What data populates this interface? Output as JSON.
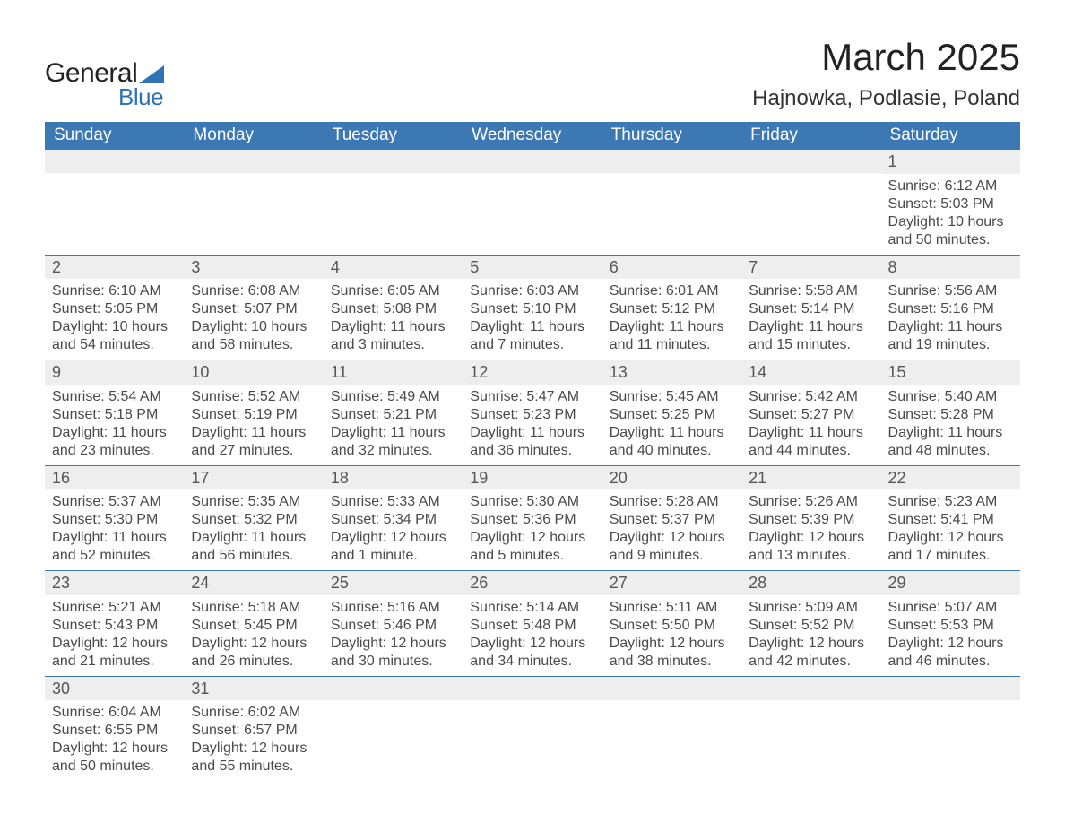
{
  "logo": {
    "text_general": "General",
    "text_blue": "Blue"
  },
  "header": {
    "month_title": "March 2025",
    "location": "Hajnowka, Podlasie, Poland"
  },
  "colors": {
    "header_bg": "#3c78b4",
    "header_text": "#ffffff",
    "daynum_bg": "#eeeeee",
    "row_border": "#3c78b4",
    "body_text": "#4a4a4a",
    "logo_blue": "#2f72b5",
    "background": "#ffffff"
  },
  "weekdays": [
    "Sunday",
    "Monday",
    "Tuesday",
    "Wednesday",
    "Thursday",
    "Friday",
    "Saturday"
  ],
  "weeks": [
    [
      null,
      null,
      null,
      null,
      null,
      null,
      {
        "day": "1",
        "sunrise": "Sunrise: 6:12 AM",
        "sunset": "Sunset: 5:03 PM",
        "daylight1": "Daylight: 10 hours",
        "daylight2": "and 50 minutes."
      }
    ],
    [
      {
        "day": "2",
        "sunrise": "Sunrise: 6:10 AM",
        "sunset": "Sunset: 5:05 PM",
        "daylight1": "Daylight: 10 hours",
        "daylight2": "and 54 minutes."
      },
      {
        "day": "3",
        "sunrise": "Sunrise: 6:08 AM",
        "sunset": "Sunset: 5:07 PM",
        "daylight1": "Daylight: 10 hours",
        "daylight2": "and 58 minutes."
      },
      {
        "day": "4",
        "sunrise": "Sunrise: 6:05 AM",
        "sunset": "Sunset: 5:08 PM",
        "daylight1": "Daylight: 11 hours",
        "daylight2": "and 3 minutes."
      },
      {
        "day": "5",
        "sunrise": "Sunrise: 6:03 AM",
        "sunset": "Sunset: 5:10 PM",
        "daylight1": "Daylight: 11 hours",
        "daylight2": "and 7 minutes."
      },
      {
        "day": "6",
        "sunrise": "Sunrise: 6:01 AM",
        "sunset": "Sunset: 5:12 PM",
        "daylight1": "Daylight: 11 hours",
        "daylight2": "and 11 minutes."
      },
      {
        "day": "7",
        "sunrise": "Sunrise: 5:58 AM",
        "sunset": "Sunset: 5:14 PM",
        "daylight1": "Daylight: 11 hours",
        "daylight2": "and 15 minutes."
      },
      {
        "day": "8",
        "sunrise": "Sunrise: 5:56 AM",
        "sunset": "Sunset: 5:16 PM",
        "daylight1": "Daylight: 11 hours",
        "daylight2": "and 19 minutes."
      }
    ],
    [
      {
        "day": "9",
        "sunrise": "Sunrise: 5:54 AM",
        "sunset": "Sunset: 5:18 PM",
        "daylight1": "Daylight: 11 hours",
        "daylight2": "and 23 minutes."
      },
      {
        "day": "10",
        "sunrise": "Sunrise: 5:52 AM",
        "sunset": "Sunset: 5:19 PM",
        "daylight1": "Daylight: 11 hours",
        "daylight2": "and 27 minutes."
      },
      {
        "day": "11",
        "sunrise": "Sunrise: 5:49 AM",
        "sunset": "Sunset: 5:21 PM",
        "daylight1": "Daylight: 11 hours",
        "daylight2": "and 32 minutes."
      },
      {
        "day": "12",
        "sunrise": "Sunrise: 5:47 AM",
        "sunset": "Sunset: 5:23 PM",
        "daylight1": "Daylight: 11 hours",
        "daylight2": "and 36 minutes."
      },
      {
        "day": "13",
        "sunrise": "Sunrise: 5:45 AM",
        "sunset": "Sunset: 5:25 PM",
        "daylight1": "Daylight: 11 hours",
        "daylight2": "and 40 minutes."
      },
      {
        "day": "14",
        "sunrise": "Sunrise: 5:42 AM",
        "sunset": "Sunset: 5:27 PM",
        "daylight1": "Daylight: 11 hours",
        "daylight2": "and 44 minutes."
      },
      {
        "day": "15",
        "sunrise": "Sunrise: 5:40 AM",
        "sunset": "Sunset: 5:28 PM",
        "daylight1": "Daylight: 11 hours",
        "daylight2": "and 48 minutes."
      }
    ],
    [
      {
        "day": "16",
        "sunrise": "Sunrise: 5:37 AM",
        "sunset": "Sunset: 5:30 PM",
        "daylight1": "Daylight: 11 hours",
        "daylight2": "and 52 minutes."
      },
      {
        "day": "17",
        "sunrise": "Sunrise: 5:35 AM",
        "sunset": "Sunset: 5:32 PM",
        "daylight1": "Daylight: 11 hours",
        "daylight2": "and 56 minutes."
      },
      {
        "day": "18",
        "sunrise": "Sunrise: 5:33 AM",
        "sunset": "Sunset: 5:34 PM",
        "daylight1": "Daylight: 12 hours",
        "daylight2": "and 1 minute."
      },
      {
        "day": "19",
        "sunrise": "Sunrise: 5:30 AM",
        "sunset": "Sunset: 5:36 PM",
        "daylight1": "Daylight: 12 hours",
        "daylight2": "and 5 minutes."
      },
      {
        "day": "20",
        "sunrise": "Sunrise: 5:28 AM",
        "sunset": "Sunset: 5:37 PM",
        "daylight1": "Daylight: 12 hours",
        "daylight2": "and 9 minutes."
      },
      {
        "day": "21",
        "sunrise": "Sunrise: 5:26 AM",
        "sunset": "Sunset: 5:39 PM",
        "daylight1": "Daylight: 12 hours",
        "daylight2": "and 13 minutes."
      },
      {
        "day": "22",
        "sunrise": "Sunrise: 5:23 AM",
        "sunset": "Sunset: 5:41 PM",
        "daylight1": "Daylight: 12 hours",
        "daylight2": "and 17 minutes."
      }
    ],
    [
      {
        "day": "23",
        "sunrise": "Sunrise: 5:21 AM",
        "sunset": "Sunset: 5:43 PM",
        "daylight1": "Daylight: 12 hours",
        "daylight2": "and 21 minutes."
      },
      {
        "day": "24",
        "sunrise": "Sunrise: 5:18 AM",
        "sunset": "Sunset: 5:45 PM",
        "daylight1": "Daylight: 12 hours",
        "daylight2": "and 26 minutes."
      },
      {
        "day": "25",
        "sunrise": "Sunrise: 5:16 AM",
        "sunset": "Sunset: 5:46 PM",
        "daylight1": "Daylight: 12 hours",
        "daylight2": "and 30 minutes."
      },
      {
        "day": "26",
        "sunrise": "Sunrise: 5:14 AM",
        "sunset": "Sunset: 5:48 PM",
        "daylight1": "Daylight: 12 hours",
        "daylight2": "and 34 minutes."
      },
      {
        "day": "27",
        "sunrise": "Sunrise: 5:11 AM",
        "sunset": "Sunset: 5:50 PM",
        "daylight1": "Daylight: 12 hours",
        "daylight2": "and 38 minutes."
      },
      {
        "day": "28",
        "sunrise": "Sunrise: 5:09 AM",
        "sunset": "Sunset: 5:52 PM",
        "daylight1": "Daylight: 12 hours",
        "daylight2": "and 42 minutes."
      },
      {
        "day": "29",
        "sunrise": "Sunrise: 5:07 AM",
        "sunset": "Sunset: 5:53 PM",
        "daylight1": "Daylight: 12 hours",
        "daylight2": "and 46 minutes."
      }
    ],
    [
      {
        "day": "30",
        "sunrise": "Sunrise: 6:04 AM",
        "sunset": "Sunset: 6:55 PM",
        "daylight1": "Daylight: 12 hours",
        "daylight2": "and 50 minutes."
      },
      {
        "day": "31",
        "sunrise": "Sunrise: 6:02 AM",
        "sunset": "Sunset: 6:57 PM",
        "daylight1": "Daylight: 12 hours",
        "daylight2": "and 55 minutes."
      },
      null,
      null,
      null,
      null,
      null
    ]
  ]
}
